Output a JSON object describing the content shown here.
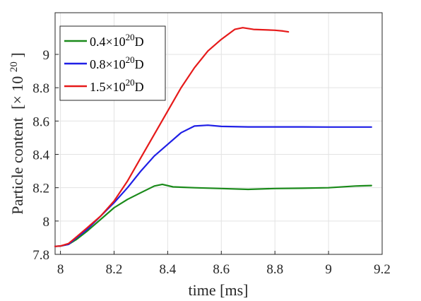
{
  "chart_data": {
    "type": "line",
    "xlabel": "time [ms]",
    "ylabel": "Particle content",
    "ylabel_unit": "[× 10",
    "ylabel_unit_exp": "20",
    "ylabel_unit_end": "]",
    "xlim": [
      7.98,
      9.2
    ],
    "ylim": [
      7.8,
      9.25
    ],
    "xticks": [
      8,
      8.2,
      8.4,
      8.6,
      8.8,
      9,
      9.2
    ],
    "xtick_labels": [
      "8",
      "8.2",
      "8.4",
      "8.6",
      "8.8",
      "9",
      "9.2"
    ],
    "yticks": [
      7.8,
      8,
      8.2,
      8.4,
      8.6,
      8.8,
      9
    ],
    "ytick_labels": [
      "7.8",
      "8",
      "8.2",
      "8.4",
      "8.6",
      "8.8",
      "9"
    ],
    "grid": true,
    "legend_position": "top-left",
    "series": [
      {
        "name": "0.4×10^20 D",
        "label_main": "0.4",
        "label_times": "×10",
        "label_exp": "20",
        "label_end": "D",
        "color": "#1a8a1a",
        "points": [
          [
            7.98,
            7.848
          ],
          [
            8.0,
            7.85
          ],
          [
            8.03,
            7.86
          ],
          [
            8.06,
            7.89
          ],
          [
            8.1,
            7.94
          ],
          [
            8.15,
            8.01
          ],
          [
            8.2,
            8.08
          ],
          [
            8.25,
            8.13
          ],
          [
            8.3,
            8.17
          ],
          [
            8.35,
            8.21
          ],
          [
            8.38,
            8.22
          ],
          [
            8.42,
            8.205
          ],
          [
            8.5,
            8.2
          ],
          [
            8.6,
            8.195
          ],
          [
            8.7,
            8.19
          ],
          [
            8.8,
            8.195
          ],
          [
            8.9,
            8.197
          ],
          [
            9.0,
            8.2
          ],
          [
            9.1,
            8.21
          ],
          [
            9.16,
            8.213
          ]
        ]
      },
      {
        "name": "0.8×10^20 D",
        "label_main": "0.8",
        "label_times": "×10",
        "label_exp": "20",
        "label_end": "D",
        "color": "#1f1fe6",
        "points": [
          [
            7.98,
            7.848
          ],
          [
            8.0,
            7.85
          ],
          [
            8.03,
            7.86
          ],
          [
            8.06,
            7.9
          ],
          [
            8.1,
            7.95
          ],
          [
            8.15,
            8.03
          ],
          [
            8.2,
            8.11
          ],
          [
            8.25,
            8.2
          ],
          [
            8.3,
            8.3
          ],
          [
            8.35,
            8.39
          ],
          [
            8.4,
            8.46
          ],
          [
            8.45,
            8.53
          ],
          [
            8.5,
            8.57
          ],
          [
            8.55,
            8.575
          ],
          [
            8.6,
            8.568
          ],
          [
            8.7,
            8.565
          ],
          [
            8.8,
            8.565
          ],
          [
            8.9,
            8.565
          ],
          [
            9.0,
            8.564
          ],
          [
            9.1,
            8.564
          ],
          [
            9.16,
            8.564
          ]
        ]
      },
      {
        "name": "1.5×10^20 D",
        "label_main": "1.5",
        "label_times": "×10",
        "label_exp": "20",
        "label_end": "D",
        "color": "#e61a1a",
        "points": [
          [
            7.98,
            7.848
          ],
          [
            8.0,
            7.85
          ],
          [
            8.03,
            7.865
          ],
          [
            8.06,
            7.905
          ],
          [
            8.1,
            7.96
          ],
          [
            8.15,
            8.03
          ],
          [
            8.2,
            8.12
          ],
          [
            8.25,
            8.24
          ],
          [
            8.3,
            8.38
          ],
          [
            8.35,
            8.52
          ],
          [
            8.4,
            8.66
          ],
          [
            8.45,
            8.8
          ],
          [
            8.5,
            8.92
          ],
          [
            8.55,
            9.02
          ],
          [
            8.6,
            9.09
          ],
          [
            8.65,
            9.15
          ],
          [
            8.68,
            9.16
          ],
          [
            8.72,
            9.15
          ],
          [
            8.8,
            9.145
          ],
          [
            8.83,
            9.14
          ],
          [
            8.85,
            9.135
          ]
        ]
      }
    ]
  }
}
